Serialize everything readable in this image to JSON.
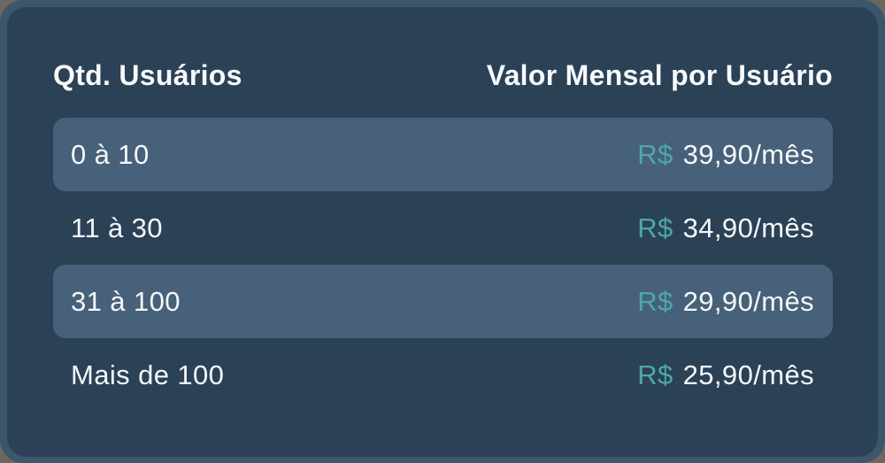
{
  "pricing_table": {
    "header": {
      "users_column": "Qtd. Usuários",
      "price_column": "Valor Mensal por Usuário"
    },
    "rows": [
      {
        "users": "0 à 10",
        "currency": "R$",
        "price": "39,90/mês",
        "highlighted": true
      },
      {
        "users": "11 à 30",
        "currency": "R$",
        "price": "34,90/mês",
        "highlighted": false
      },
      {
        "users": "31 à 100",
        "currency": "R$",
        "price": "29,90/mês",
        "highlighted": true
      },
      {
        "users": "Mais de 100",
        "currency": "R$",
        "price": "25,90/mês",
        "highlighted": false
      }
    ],
    "colors": {
      "card_background": "#2b4156",
      "highlighted_row_background": "#47617a",
      "backdrop_blue": "#3d566c",
      "accent_teal": "#4fa7aa",
      "text_white": "#f6f8fa"
    }
  }
}
